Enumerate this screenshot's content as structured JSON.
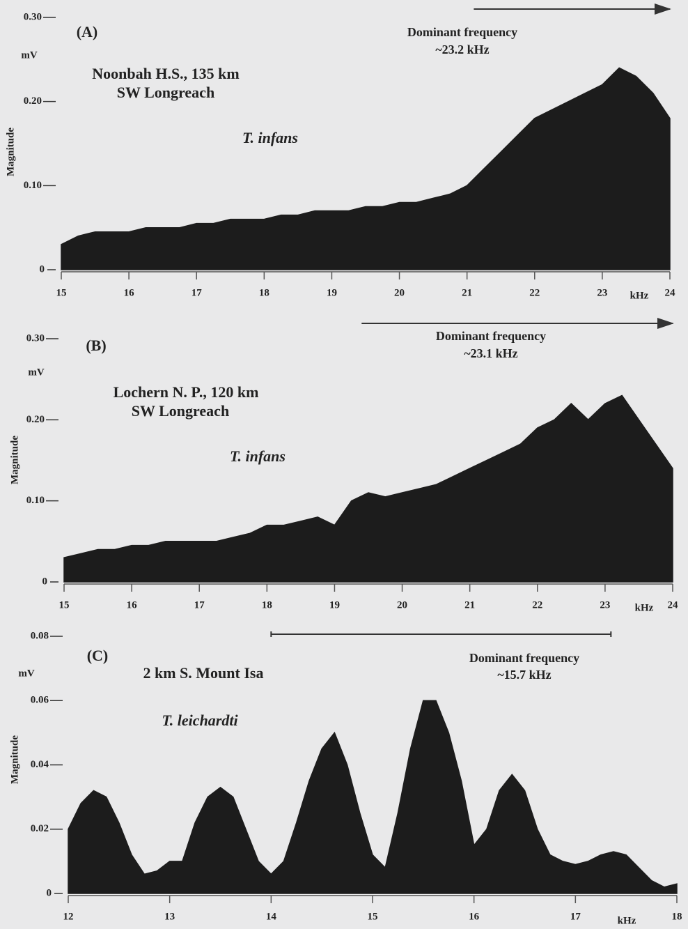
{
  "chart_data": [
    {
      "type": "area",
      "panel": "(A)",
      "site_lines": [
        "Noonbah H.S., 135 km",
        "SW Longreach"
      ],
      "species": "T. infans",
      "annotation": [
        "Dominant frequency",
        "~23.2 kHz"
      ],
      "y_label": "Magnitude",
      "y_unit": "mV",
      "x_unit": "kHz",
      "band": [
        21.1,
        24
      ],
      "arrow": true,
      "color": "#1c1c1c",
      "xlim": [
        15,
        24
      ],
      "xticks": [
        15,
        16,
        17,
        18,
        19,
        20,
        21,
        22,
        23,
        24
      ],
      "ylim": [
        0,
        0.3
      ],
      "yticks": [
        0,
        {
          "value": 0.1,
          "label": "0.10"
        },
        {
          "value": 0.2,
          "label": "0.20"
        },
        {
          "value": 0.3,
          "label": "0.30"
        }
      ],
      "x": [
        15,
        15.25,
        15.5,
        15.75,
        16,
        16.25,
        16.5,
        16.75,
        17,
        17.25,
        17.5,
        17.75,
        18,
        18.25,
        18.5,
        18.75,
        19,
        19.25,
        19.5,
        19.75,
        20,
        20.25,
        20.5,
        20.75,
        21,
        21.25,
        21.5,
        21.75,
        22,
        22.25,
        22.5,
        22.75,
        23,
        23.25,
        23.5,
        23.75,
        24
      ],
      "values": [
        0.03,
        0.04,
        0.045,
        0.045,
        0.045,
        0.05,
        0.05,
        0.05,
        0.055,
        0.055,
        0.06,
        0.06,
        0.06,
        0.065,
        0.065,
        0.07,
        0.07,
        0.07,
        0.075,
        0.075,
        0.08,
        0.08,
        0.085,
        0.09,
        0.1,
        0.12,
        0.14,
        0.16,
        0.18,
        0.19,
        0.2,
        0.21,
        0.22,
        0.24,
        0.23,
        0.21,
        0.18
      ]
    },
    {
      "type": "area",
      "panel": "(B)",
      "site_lines": [
        "Lochern N. P., 120 km",
        "SW Longreach"
      ],
      "species": "T. infans",
      "annotation": [
        "Dominant frequency",
        "~23.1 kHz"
      ],
      "y_label": "Magnitude",
      "y_unit": "mV",
      "x_unit": "kHz",
      "band": [
        19.4,
        24
      ],
      "arrow": true,
      "color": "#1c1c1c",
      "xlim": [
        15,
        24
      ],
      "xticks": [
        15,
        16,
        17,
        18,
        19,
        20,
        21,
        22,
        23,
        24
      ],
      "ylim": [
        0,
        0.3
      ],
      "yticks": [
        0,
        {
          "value": 0.1,
          "label": "0.10"
        },
        {
          "value": 0.2,
          "label": "0.20"
        },
        {
          "value": 0.3,
          "label": "0.30"
        }
      ],
      "x": [
        15,
        15.25,
        15.5,
        15.75,
        16,
        16.25,
        16.5,
        16.75,
        17,
        17.25,
        17.5,
        17.75,
        18,
        18.25,
        18.5,
        18.75,
        19,
        19.25,
        19.5,
        19.75,
        20,
        20.25,
        20.5,
        20.75,
        21,
        21.25,
        21.5,
        21.75,
        22,
        22.25,
        22.5,
        22.75,
        23,
        23.25,
        23.5,
        23.75,
        24
      ],
      "values": [
        0.03,
        0.035,
        0.04,
        0.04,
        0.045,
        0.045,
        0.05,
        0.05,
        0.05,
        0.05,
        0.055,
        0.06,
        0.07,
        0.07,
        0.075,
        0.08,
        0.07,
        0.1,
        0.11,
        0.105,
        0.11,
        0.115,
        0.12,
        0.13,
        0.14,
        0.15,
        0.16,
        0.17,
        0.19,
        0.2,
        0.22,
        0.2,
        0.22,
        0.23,
        0.2,
        0.17,
        0.14
      ]
    },
    {
      "type": "area",
      "panel": "(C)",
      "site_lines": [
        "2 km S. Mount Isa"
      ],
      "species": "T. leichardti",
      "annotation": [
        "Dominant frequency",
        "~15.7 kHz"
      ],
      "y_label": "Magnitude",
      "y_unit": "mV",
      "x_unit": "kHz",
      "band": [
        14,
        17.35
      ],
      "arrow": false,
      "color": "#1c1c1c",
      "xlim": [
        12,
        18
      ],
      "xticks": [
        12,
        13,
        14,
        15,
        16,
        17,
        18
      ],
      "ylim": [
        0,
        0.08
      ],
      "yticks": [
        0,
        {
          "value": 0.02,
          "label": "0.02"
        },
        {
          "value": 0.04,
          "label": "0.04"
        },
        {
          "value": 0.06,
          "label": "0.06"
        },
        {
          "value": 0.08,
          "label": "0.08"
        }
      ],
      "x": [
        12,
        12.125,
        12.25,
        12.375,
        12.5,
        12.625,
        12.75,
        12.875,
        13,
        13.125,
        13.25,
        13.375,
        13.5,
        13.625,
        13.75,
        13.875,
        14,
        14.125,
        14.25,
        14.375,
        14.5,
        14.625,
        14.75,
        14.875,
        15,
        15.125,
        15.25,
        15.375,
        15.5,
        15.625,
        15.75,
        15.875,
        16,
        16.125,
        16.25,
        16.375,
        16.5,
        16.625,
        16.75,
        16.875,
        17,
        17.125,
        17.25,
        17.375,
        17.5,
        17.625,
        17.75,
        17.875,
        18
      ],
      "values": [
        0.02,
        0.028,
        0.032,
        0.03,
        0.022,
        0.012,
        0.006,
        0.007,
        0.01,
        0.01,
        0.022,
        0.03,
        0.033,
        0.03,
        0.02,
        0.01,
        0.006,
        0.01,
        0.022,
        0.035,
        0.045,
        0.05,
        0.04,
        0.025,
        0.012,
        0.008,
        0.025,
        0.045,
        0.06,
        0.06,
        0.05,
        0.035,
        0.015,
        0.02,
        0.032,
        0.037,
        0.032,
        0.02,
        0.012,
        0.01,
        0.009,
        0.01,
        0.012,
        0.013,
        0.012,
        0.008,
        0.004,
        0.002,
        0.003
      ]
    }
  ]
}
